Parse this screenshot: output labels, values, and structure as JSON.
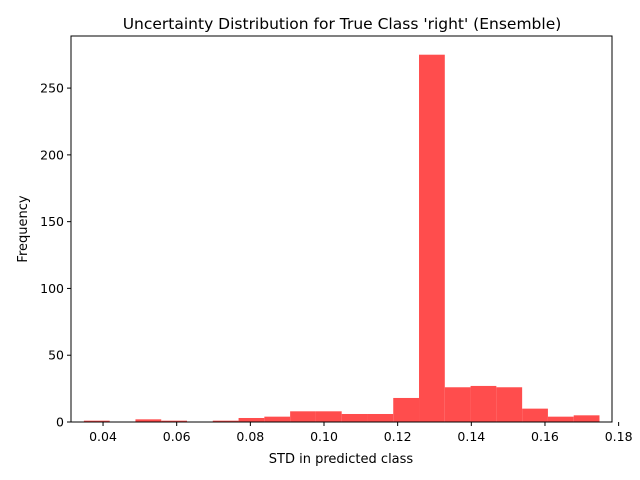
{
  "chart_data": {
    "type": "bar",
    "title": "Uncertainty Distribution for True Class 'right' (Ensemble)",
    "xlabel": "STD in predicted class",
    "ylabel": "Frequency",
    "bar_color": "#ff4d4d",
    "xlim": [
      0.0313,
      0.1782
    ],
    "ylim": [
      0,
      289
    ],
    "xticks": [
      0.04,
      0.06,
      0.08,
      0.1,
      0.12,
      0.14,
      0.16,
      0.18
    ],
    "xtick_labels": [
      "0.04",
      "0.06",
      "0.08",
      "0.10",
      "0.12",
      "0.14",
      "0.16",
      "0.18"
    ],
    "yticks": [
      0,
      50,
      100,
      150,
      200,
      250
    ],
    "ytick_labels": [
      "0",
      "50",
      "100",
      "150",
      "200",
      "250"
    ],
    "bins": [
      {
        "start": 0.0348,
        "end": 0.0418,
        "count": 1
      },
      {
        "start": 0.0418,
        "end": 0.0488,
        "count": 0
      },
      {
        "start": 0.0488,
        "end": 0.0558,
        "count": 2
      },
      {
        "start": 0.0558,
        "end": 0.0628,
        "count": 1
      },
      {
        "start": 0.0628,
        "end": 0.0698,
        "count": 0
      },
      {
        "start": 0.0698,
        "end": 0.0768,
        "count": 1
      },
      {
        "start": 0.0768,
        "end": 0.0838,
        "count": 3
      },
      {
        "start": 0.0838,
        "end": 0.0908,
        "count": 4
      },
      {
        "start": 0.0908,
        "end": 0.0978,
        "count": 8
      },
      {
        "start": 0.0978,
        "end": 0.1048,
        "count": 8
      },
      {
        "start": 0.1048,
        "end": 0.1118,
        "count": 6
      },
      {
        "start": 0.1118,
        "end": 0.1188,
        "count": 6
      },
      {
        "start": 0.1188,
        "end": 0.1258,
        "count": 18
      },
      {
        "start": 0.1258,
        "end": 0.1328,
        "count": 275
      },
      {
        "start": 0.1328,
        "end": 0.1398,
        "count": 26
      },
      {
        "start": 0.1398,
        "end": 0.1468,
        "count": 27
      },
      {
        "start": 0.1468,
        "end": 0.1538,
        "count": 26
      },
      {
        "start": 0.1538,
        "end": 0.1608,
        "count": 10
      },
      {
        "start": 0.1608,
        "end": 0.1678,
        "count": 4
      },
      {
        "start": 0.1678,
        "end": 0.1748,
        "count": 5
      }
    ]
  }
}
